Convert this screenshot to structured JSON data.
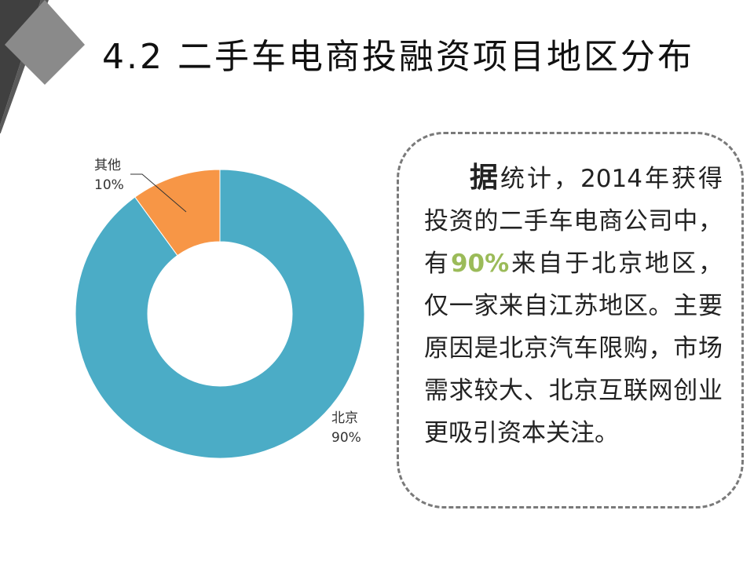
{
  "slide": {
    "title": "4.2 二手车电商投融资项目地区分布"
  },
  "colors": {
    "beijing": "#4bacc6",
    "other": "#f79646",
    "highlight": "#9bbb59",
    "corner_dark": "#404040",
    "corner_mid": "#6f6f6f",
    "corner_light": "#8a8a8a"
  },
  "chart_data": {
    "type": "pie",
    "donut": true,
    "title": "",
    "categories": [
      "北京",
      "其他"
    ],
    "values": [
      90,
      10
    ],
    "labels": [
      {
        "name": "北京",
        "percent": "90%"
      },
      {
        "name": "其他",
        "percent": "10%"
      }
    ]
  },
  "callout": {
    "lead_char": "据",
    "text_part1": "统计，2014年获得投资的二手车电商公司中，有",
    "highlight": "90%",
    "text_part2": "来自于北京地区，仅一家来自江苏地区。主要原因是北京汽车限购，市场需求较大、北京互联网创业更吸引资本关注。"
  }
}
